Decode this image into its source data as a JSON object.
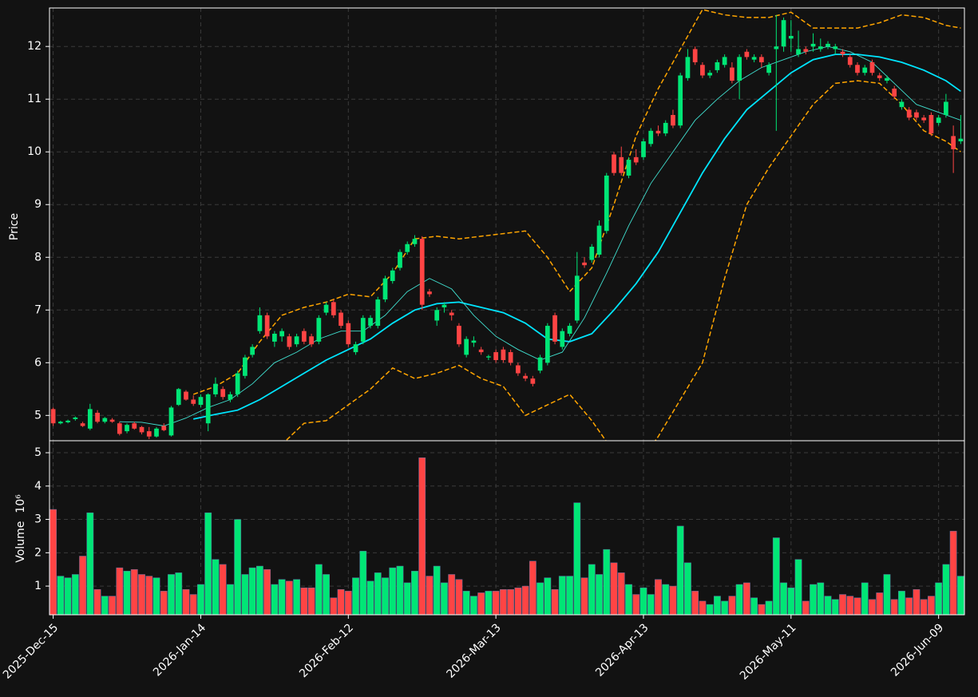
{
  "chart_data": {
    "type": "candlestick",
    "ylabel": "Price",
    "volume_label": "Volume",
    "volume_offset": "10⁶",
    "up_color": "#00e676",
    "down_color": "#ff4444",
    "grid": true,
    "categories": [
      "2025-Dec-15",
      null,
      null,
      null,
      null,
      null,
      null,
      null,
      null,
      null,
      null,
      null,
      null,
      null,
      null,
      null,
      null,
      null,
      null,
      null,
      "2026-Jan-14",
      null,
      null,
      null,
      null,
      null,
      null,
      null,
      null,
      null,
      null,
      null,
      null,
      null,
      null,
      null,
      null,
      null,
      null,
      null,
      "2026-Feb-12",
      null,
      null,
      null,
      null,
      null,
      null,
      null,
      null,
      null,
      null,
      null,
      null,
      null,
      null,
      null,
      null,
      null,
      null,
      null,
      "2026-Mar-13",
      null,
      null,
      null,
      null,
      null,
      null,
      null,
      null,
      null,
      null,
      null,
      null,
      null,
      null,
      null,
      null,
      null,
      null,
      null,
      "2026-Apr-13",
      null,
      null,
      null,
      null,
      null,
      null,
      null,
      null,
      null,
      null,
      null,
      null,
      null,
      null,
      null,
      null,
      null,
      null,
      null,
      "2026-May-11",
      null,
      null,
      null,
      null,
      null,
      null,
      null,
      null,
      null,
      null,
      null,
      null,
      null,
      null,
      null,
      null,
      null,
      null,
      null,
      "2026-Jun-09",
      null,
      null,
      null
    ],
    "ohlc": [
      [
        5.12,
        5.15,
        4.8,
        4.85
      ],
      [
        4.85,
        4.9,
        4.83,
        4.88
      ],
      [
        4.87,
        4.92,
        4.85,
        4.9
      ],
      [
        4.93,
        4.98,
        4.9,
        4.96
      ],
      [
        4.85,
        4.88,
        4.78,
        4.8
      ],
      [
        4.75,
        5.22,
        4.72,
        5.12
      ],
      [
        5.05,
        5.1,
        4.85,
        4.88
      ],
      [
        4.88,
        4.97,
        4.85,
        4.95
      ],
      [
        4.92,
        4.95,
        4.86,
        4.88
      ],
      [
        4.85,
        4.88,
        4.62,
        4.65
      ],
      [
        4.7,
        4.85,
        4.66,
        4.82
      ],
      [
        4.85,
        4.88,
        4.73,
        4.75
      ],
      [
        4.78,
        4.8,
        4.64,
        4.68
      ],
      [
        4.7,
        4.78,
        4.55,
        4.6
      ],
      [
        4.6,
        4.78,
        4.58,
        4.75
      ],
      [
        4.8,
        4.85,
        4.7,
        4.72
      ],
      [
        4.62,
        5.18,
        4.6,
        5.15
      ],
      [
        5.2,
        5.52,
        5.18,
        5.5
      ],
      [
        5.45,
        5.48,
        5.28,
        5.3
      ],
      [
        5.3,
        5.38,
        5.18,
        5.22
      ],
      [
        5.2,
        5.4,
        5.15,
        5.35
      ],
      [
        4.85,
        5.42,
        4.7,
        5.4
      ],
      [
        5.4,
        5.72,
        5.35,
        5.6
      ],
      [
        5.5,
        5.55,
        5.3,
        5.35
      ],
      [
        5.3,
        5.45,
        5.25,
        5.4
      ],
      [
        5.4,
        5.85,
        5.35,
        5.8
      ],
      [
        5.75,
        6.15,
        5.7,
        6.1
      ],
      [
        6.15,
        6.35,
        6.1,
        6.3
      ],
      [
        6.6,
        7.05,
        6.55,
        6.9
      ],
      [
        6.9,
        6.95,
        6.45,
        6.5
      ],
      [
        6.4,
        6.6,
        6.3,
        6.55
      ],
      [
        6.5,
        6.65,
        6.4,
        6.6
      ],
      [
        6.5,
        6.55,
        6.25,
        6.3
      ],
      [
        6.35,
        6.55,
        6.3,
        6.5
      ],
      [
        6.6,
        6.65,
        6.35,
        6.4
      ],
      [
        6.5,
        6.55,
        6.3,
        6.35
      ],
      [
        6.4,
        6.9,
        6.35,
        6.85
      ],
      [
        6.95,
        7.15,
        6.9,
        7.1
      ],
      [
        7.15,
        7.2,
        6.85,
        6.9
      ],
      [
        6.95,
        7.0,
        6.65,
        6.7
      ],
      [
        6.75,
        6.8,
        6.3,
        6.35
      ],
      [
        6.2,
        6.4,
        6.15,
        6.35
      ],
      [
        6.4,
        6.9,
        6.35,
        6.85
      ],
      [
        6.7,
        6.9,
        6.65,
        6.85
      ],
      [
        6.7,
        7.25,
        6.65,
        7.2
      ],
      [
        7.2,
        7.65,
        7.15,
        7.6
      ],
      [
        7.55,
        7.8,
        7.5,
        7.75
      ],
      [
        7.8,
        8.15,
        7.75,
        8.1
      ],
      [
        8.1,
        8.3,
        8.05,
        8.25
      ],
      [
        8.25,
        8.42,
        8.2,
        8.35
      ],
      [
        8.35,
        8.4,
        7.0,
        7.1
      ],
      [
        7.35,
        7.4,
        7.25,
        7.3
      ],
      [
        6.8,
        7.05,
        6.7,
        7.0
      ],
      [
        7.05,
        7.15,
        6.95,
        7.1
      ],
      [
        6.95,
        7.0,
        6.8,
        6.9
      ],
      [
        6.7,
        6.75,
        6.3,
        6.35
      ],
      [
        6.15,
        6.5,
        6.1,
        6.45
      ],
      [
        6.38,
        6.5,
        6.3,
        6.42
      ],
      [
        6.25,
        6.3,
        6.15,
        6.2
      ],
      [
        6.1,
        6.15,
        6.05,
        6.12
      ],
      [
        6.2,
        6.25,
        6.0,
        6.05
      ],
      [
        6.25,
        6.3,
        6.0,
        6.05
      ],
      [
        6.2,
        6.25,
        5.95,
        6.0
      ],
      [
        5.95,
        6.0,
        5.75,
        5.8
      ],
      [
        5.75,
        5.8,
        5.65,
        5.7
      ],
      [
        5.7,
        5.75,
        5.55,
        5.6
      ],
      [
        5.85,
        6.15,
        5.8,
        6.1
      ],
      [
        6.0,
        6.75,
        5.95,
        6.7
      ],
      [
        6.9,
        6.95,
        6.35,
        6.4
      ],
      [
        6.3,
        6.65,
        6.25,
        6.6
      ],
      [
        6.55,
        6.75,
        6.5,
        6.7
      ],
      [
        6.8,
        8.1,
        6.75,
        7.65
      ],
      [
        7.9,
        8.0,
        7.8,
        7.85
      ],
      [
        7.95,
        8.25,
        7.9,
        8.2
      ],
      [
        8.05,
        8.7,
        8.0,
        8.6
      ],
      [
        8.5,
        9.6,
        8.45,
        9.55
      ],
      [
        9.95,
        10.0,
        9.55,
        9.6
      ],
      [
        9.9,
        10.1,
        9.55,
        9.6
      ],
      [
        9.55,
        9.9,
        9.5,
        9.85
      ],
      [
        9.9,
        10.05,
        9.75,
        9.8
      ],
      [
        9.9,
        10.25,
        9.85,
        10.2
      ],
      [
        10.15,
        10.45,
        10.1,
        10.4
      ],
      [
        10.4,
        10.5,
        10.3,
        10.35
      ],
      [
        10.35,
        10.6,
        10.3,
        10.55
      ],
      [
        10.7,
        10.8,
        10.45,
        10.5
      ],
      [
        10.5,
        11.5,
        10.45,
        11.45
      ],
      [
        11.4,
        11.95,
        11.35,
        11.8
      ],
      [
        11.95,
        12.0,
        11.65,
        11.7
      ],
      [
        11.65,
        11.7,
        11.4,
        11.45
      ],
      [
        11.45,
        11.55,
        11.4,
        11.5
      ],
      [
        11.55,
        11.75,
        11.5,
        11.7
      ],
      [
        11.65,
        11.85,
        11.6,
        11.8
      ],
      [
        11.6,
        11.7,
        11.3,
        11.35
      ],
      [
        11.35,
        11.85,
        11.0,
        11.8
      ],
      [
        11.9,
        11.95,
        11.75,
        11.8
      ],
      [
        11.75,
        11.85,
        11.7,
        11.8
      ],
      [
        11.8,
        11.85,
        11.6,
        11.7
      ],
      [
        11.5,
        11.7,
        11.45,
        11.65
      ],
      [
        11.95,
        12.6,
        10.4,
        12.0
      ],
      [
        12.0,
        12.55,
        11.9,
        12.5
      ],
      [
        12.15,
        12.5,
        11.9,
        12.2
      ],
      [
        11.85,
        12.3,
        11.8,
        11.95
      ],
      [
        11.95,
        12.0,
        11.85,
        11.9
      ],
      [
        12.0,
        12.25,
        11.9,
        12.05
      ],
      [
        11.95,
        12.15,
        11.9,
        12.0
      ],
      [
        12.0,
        12.1,
        11.95,
        12.05
      ],
      [
        11.95,
        12.05,
        11.85,
        12.0
      ],
      [
        11.9,
        11.95,
        11.8,
        11.85
      ],
      [
        11.8,
        11.85,
        11.6,
        11.65
      ],
      [
        11.65,
        11.7,
        11.45,
        11.5
      ],
      [
        11.5,
        11.65,
        11.45,
        11.6
      ],
      [
        11.7,
        11.75,
        11.45,
        11.5
      ],
      [
        11.45,
        11.5,
        11.35,
        11.4
      ],
      [
        11.35,
        11.45,
        11.3,
        11.4
      ],
      [
        11.2,
        11.25,
        11.0,
        11.05
      ],
      [
        10.85,
        11.0,
        10.8,
        10.95
      ],
      [
        10.8,
        10.85,
        10.6,
        10.65
      ],
      [
        10.75,
        10.8,
        10.6,
        10.65
      ],
      [
        10.65,
        10.7,
        10.55,
        10.6
      ],
      [
        10.7,
        10.75,
        10.3,
        10.35
      ],
      [
        10.55,
        10.7,
        10.5,
        10.65
      ],
      [
        10.7,
        11.1,
        10.65,
        10.95
      ],
      [
        10.3,
        10.5,
        9.6,
        10.05
      ],
      [
        10.2,
        10.7,
        10.15,
        10.25
      ]
    ],
    "volume": [
      3.3,
      1.3,
      1.25,
      1.35,
      1.9,
      3.2,
      0.9,
      0.7,
      0.7,
      1.55,
      1.45,
      1.5,
      1.35,
      1.3,
      1.25,
      0.85,
      1.35,
      1.4,
      0.9,
      0.75,
      1.05,
      3.2,
      1.8,
      1.65,
      1.05,
      3.0,
      1.35,
      1.55,
      1.6,
      1.5,
      1.05,
      1.2,
      1.15,
      1.2,
      0.95,
      0.95,
      1.65,
      1.35,
      0.65,
      0.9,
      0.85,
      1.25,
      2.05,
      1.15,
      1.4,
      1.25,
      1.55,
      1.6,
      1.1,
      1.45,
      4.85,
      1.3,
      1.6,
      1.1,
      1.35,
      1.2,
      0.85,
      0.7,
      0.8,
      0.85,
      0.85,
      0.9,
      0.9,
      0.95,
      1.0,
      1.75,
      1.1,
      1.25,
      0.9,
      1.3,
      1.3,
      3.5,
      1.25,
      1.65,
      1.35,
      2.1,
      1.7,
      1.4,
      1.05,
      0.75,
      0.95,
      0.75,
      1.2,
      1.05,
      1.0,
      2.8,
      1.7,
      0.85,
      0.55,
      0.45,
      0.7,
      0.55,
      0.7,
      1.05,
      1.1,
      0.65,
      0.45,
      0.55,
      2.45,
      1.1,
      0.95,
      1.8,
      0.55,
      1.05,
      1.1,
      0.7,
      0.6,
      0.75,
      0.7,
      0.65,
      1.1,
      0.6,
      0.8,
      1.35,
      0.6,
      0.85,
      0.65,
      0.9,
      0.6,
      0.7,
      1.1,
      1.65,
      2.65,
      1.3
    ],
    "overlays": [
      {
        "color": "#00e5ff",
        "width": 1.8,
        "dash": false,
        "x": [
          19,
          22,
          25,
          28,
          31,
          34,
          37,
          40,
          43,
          46,
          49,
          52,
          55,
          58,
          61,
          64,
          67,
          70,
          73,
          76,
          79,
          82,
          85,
          88,
          91,
          94,
          97,
          100,
          103,
          106,
          109,
          112,
          115,
          118,
          121,
          123
        ],
        "values": [
          4.93,
          5.02,
          5.1,
          5.3,
          5.55,
          5.8,
          6.05,
          6.25,
          6.45,
          6.75,
          7.0,
          7.12,
          7.15,
          7.05,
          6.95,
          6.75,
          6.45,
          6.4,
          6.55,
          7.0,
          7.5,
          8.1,
          8.85,
          9.6,
          10.25,
          10.8,
          11.15,
          11.5,
          11.75,
          11.85,
          11.85,
          11.8,
          11.7,
          11.55,
          11.35,
          11.15
        ]
      },
      {
        "color": "#40e0d0",
        "width": 0.9,
        "dash": false,
        "x": [
          9,
          12,
          15,
          18,
          21,
          24,
          27,
          30,
          33,
          36,
          39,
          42,
          45,
          48,
          51,
          54,
          57,
          60,
          63,
          66,
          69,
          72,
          75,
          78,
          81,
          84,
          87,
          90,
          93,
          96,
          99,
          102,
          105,
          108,
          111,
          114,
          117,
          120,
          123
        ],
        "values": [
          4.88,
          4.87,
          4.8,
          4.95,
          5.15,
          5.3,
          5.6,
          6.0,
          6.2,
          6.45,
          6.6,
          6.6,
          6.9,
          7.35,
          7.6,
          7.4,
          6.9,
          6.5,
          6.25,
          6.05,
          6.2,
          6.85,
          7.7,
          8.6,
          9.4,
          10.0,
          10.6,
          11.0,
          11.35,
          11.6,
          11.75,
          11.9,
          12.0,
          11.9,
          11.7,
          11.3,
          10.9,
          10.75,
          10.6
        ]
      },
      {
        "color": "#ffa500",
        "width": 1.5,
        "dash": true,
        "x": [
          19,
          22,
          25,
          28,
          31,
          34,
          37,
          40,
          43,
          46,
          49,
          52,
          55,
          58,
          61,
          64,
          67,
          70,
          73,
          76,
          79,
          82,
          85,
          88,
          91,
          94,
          97,
          100,
          103,
          106,
          109,
          112,
          115,
          118,
          121,
          123
        ],
        "values": [
          5.4,
          5.55,
          5.8,
          6.4,
          6.9,
          7.05,
          7.15,
          7.3,
          7.25,
          7.7,
          8.35,
          8.4,
          8.35,
          8.4,
          8.45,
          8.5,
          8.0,
          7.35,
          7.8,
          9.0,
          10.3,
          11.2,
          11.95,
          12.7,
          12.6,
          12.55,
          12.55,
          12.65,
          12.35,
          12.35,
          12.35,
          12.45,
          12.6,
          12.55,
          12.4,
          12.35
        ]
      },
      {
        "color": "#ffa500",
        "width": 1.5,
        "dash": true,
        "x": [
          19,
          22,
          25,
          28,
          31,
          34,
          37,
          40,
          43,
          46,
          49,
          52,
          55,
          58,
          61,
          64,
          67,
          70,
          73,
          76,
          79,
          82,
          85,
          88,
          91,
          94,
          97,
          100,
          103,
          106,
          109,
          112,
          115,
          118,
          121,
          123
        ],
        "values": [
          4.45,
          4.35,
          4.35,
          4.2,
          4.45,
          4.85,
          4.9,
          5.2,
          5.5,
          5.9,
          5.7,
          5.8,
          5.95,
          5.7,
          5.55,
          5.0,
          5.2,
          5.4,
          4.9,
          4.3,
          4.0,
          4.6,
          5.3,
          6.0,
          7.6,
          9.0,
          9.7,
          10.3,
          10.9,
          11.3,
          11.35,
          11.3,
          10.9,
          10.4,
          10.2,
          10.0
        ]
      }
    ],
    "ylim": [
      4.52,
      12.73
    ],
    "yticks": [
      5,
      6,
      7,
      8,
      9,
      10,
      11,
      12
    ],
    "y2lim": [
      0.14,
      5.36
    ],
    "y2ticks": [
      1,
      2,
      3,
      4,
      5
    ]
  }
}
